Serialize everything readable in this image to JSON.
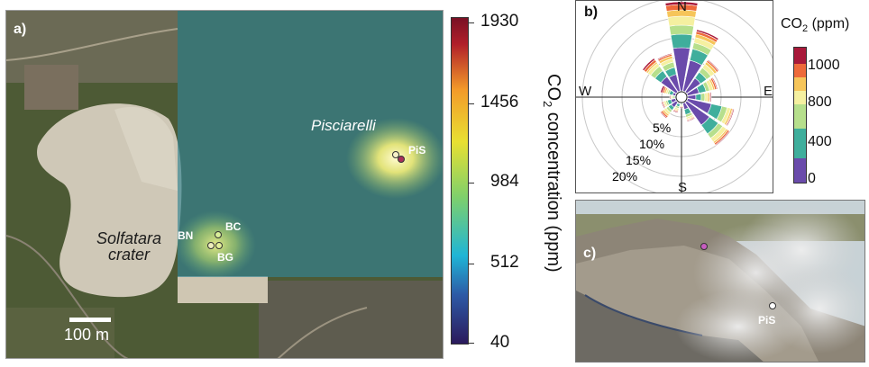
{
  "panel_a": {
    "label": "a)",
    "crater_line1": "Solfatara",
    "crater_line2": "crater",
    "area_label": "Pisciarelli",
    "sites": [
      "BN",
      "BC",
      "BG",
      "PiS"
    ],
    "scalebar_label": "100 m"
  },
  "colorbar_a": {
    "title": "CO2 concentration (ppm)",
    "title_main": "CO",
    "title_sub": "2",
    "title_rest": " concentration (ppm)",
    "ticks": [
      "1930",
      "1456",
      "984",
      "512",
      "40"
    ],
    "colors": [
      "#2b1a5c",
      "#2d5aa6",
      "#1fb5d6",
      "#7fd06b",
      "#e8e032",
      "#f39a2a",
      "#b01f2a",
      "#7a1125"
    ]
  },
  "panel_b": {
    "label": "b)",
    "compass": {
      "north": "N",
      "south": "S",
      "east": "E",
      "west": "W"
    },
    "radial_labels": [
      "5%",
      "10%",
      "15%",
      "20%"
    ],
    "legend_title_main": "CO",
    "legend_title_sub": "2",
    "legend_title_rest": " (ppm)",
    "legend_ticks": [
      "1000",
      "800",
      "400",
      "0"
    ],
    "bin_colors": [
      "#6a4bab",
      "#3fae9c",
      "#b6df8c",
      "#f5f0a0",
      "#f6c55a",
      "#ee6a3a",
      "#a8193a"
    ]
  },
  "panel_c": {
    "label": "c)",
    "site": "PiS"
  }
}
